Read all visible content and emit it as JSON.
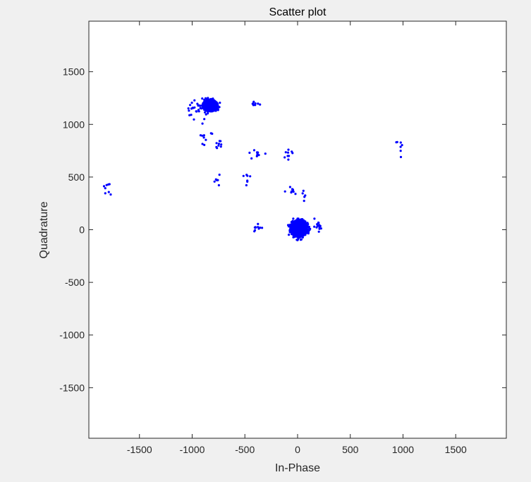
{
  "chart_data": {
    "type": "scatter",
    "title": "Scatter plot",
    "xlabel": "In-Phase",
    "ylabel": "Quadrature",
    "xlim": [
      -1980,
      1980
    ],
    "ylim": [
      -1980,
      1980
    ],
    "xticks": [
      -1500,
      -1000,
      -500,
      0,
      500,
      1000,
      1500
    ],
    "yticks": [
      -1500,
      -1000,
      -500,
      0,
      500,
      1000,
      1500
    ],
    "xtick_labels": [
      "-1500",
      "-1000",
      "-500",
      "0",
      "500",
      "1000",
      "1500"
    ],
    "ytick_labels": [
      "-1500",
      "-1000",
      "-500",
      "0",
      "500",
      "1000",
      "1500"
    ],
    "grid": false,
    "marker_color": "#0000ff",
    "background_color": "#ffffff",
    "figure_color": "#f0f0f0",
    "clusters": [
      {
        "center": [
          10,
          10
        ],
        "spread": [
          75,
          75
        ],
        "count": 1500,
        "shape": "disk"
      },
      {
        "center": [
          -830,
          1180
        ],
        "spread": [
          70,
          55
        ],
        "count": 520,
        "shape": "disk"
      },
      {
        "center": [
          -960,
          1150
        ],
        "spread": [
          55,
          55
        ],
        "count": 28,
        "shape": "gauss"
      },
      {
        "center": [
          -420,
          1190
        ],
        "spread": [
          40,
          12
        ],
        "count": 8,
        "shape": "gauss"
      },
      {
        "center": [
          -870,
          880
        ],
        "spread": [
          35,
          40
        ],
        "count": 9,
        "shape": "gauss"
      },
      {
        "center": [
          -750,
          810
        ],
        "spread": [
          30,
          45
        ],
        "count": 9,
        "shape": "gauss"
      },
      {
        "center": [
          -380,
          725
        ],
        "spread": [
          35,
          20
        ],
        "count": 10,
        "shape": "gauss"
      },
      {
        "center": [
          -85,
          715
        ],
        "spread": [
          20,
          20
        ],
        "count": 9,
        "shape": "gauss"
      },
      {
        "center": [
          990,
          790
        ],
        "spread": [
          30,
          30
        ],
        "count": 7,
        "shape": "gauss"
      },
      {
        "center": [
          -1810,
          395
        ],
        "spread": [
          20,
          30
        ],
        "count": 8,
        "shape": "gauss"
      },
      {
        "center": [
          -770,
          470
        ],
        "spread": [
          18,
          30
        ],
        "count": 7,
        "shape": "gauss"
      },
      {
        "center": [
          -470,
          480
        ],
        "spread": [
          18,
          40
        ],
        "count": 7,
        "shape": "gauss"
      },
      {
        "center": [
          -60,
          370
        ],
        "spread": [
          35,
          20
        ],
        "count": 8,
        "shape": "gauss"
      },
      {
        "center": [
          80,
          320
        ],
        "spread": [
          25,
          25
        ],
        "count": 5,
        "shape": "gauss"
      },
      {
        "center": [
          -390,
          10
        ],
        "spread": [
          25,
          25
        ],
        "count": 10,
        "shape": "gauss"
      },
      {
        "center": [
          190,
          60
        ],
        "spread": [
          30,
          30
        ],
        "count": 15,
        "shape": "gauss"
      }
    ]
  }
}
